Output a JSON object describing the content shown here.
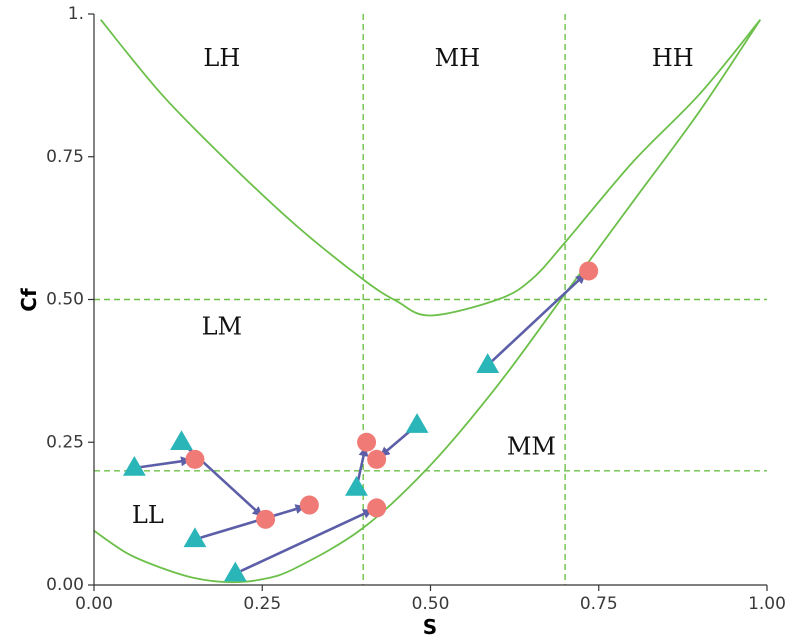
{
  "chart_data": {
    "type": "scatter",
    "xlabel": "S",
    "ylabel": "Cf",
    "xlim": [
      0,
      1
    ],
    "ylim": [
      0,
      1
    ],
    "x_ticks": [
      {
        "value": 0,
        "label": "0.00"
      },
      {
        "value": 0.25,
        "label": "0.25"
      },
      {
        "value": 0.5,
        "label": "0.50"
      },
      {
        "value": 0.75,
        "label": "0.75"
      },
      {
        "value": 1,
        "label": "1.00"
      }
    ],
    "y_ticks": [
      {
        "value": 0,
        "label": "0.00"
      },
      {
        "value": 0.25,
        "label": "0.25"
      },
      {
        "value": 0.5,
        "label": "0.50"
      },
      {
        "value": 0.75,
        "label": "0.75"
      },
      {
        "value": 1,
        "label": "1."
      }
    ],
    "grid": false,
    "threshold_lines": {
      "vertical": [
        0.4,
        0.7
      ],
      "horizontal": [
        0.5,
        0.2
      ],
      "color": "#6cc04a",
      "style": "dashed"
    },
    "curves": [
      {
        "name": "upper",
        "points": [
          [
            0.01,
            0.99
          ],
          [
            0.1,
            0.86
          ],
          [
            0.2,
            0.74
          ],
          [
            0.3,
            0.63
          ],
          [
            0.4,
            0.535
          ],
          [
            0.45,
            0.497
          ],
          [
            0.5,
            0.472
          ],
          [
            0.6,
            0.5
          ],
          [
            0.65,
            0.535
          ],
          [
            0.7,
            0.6
          ],
          [
            0.8,
            0.74
          ],
          [
            0.9,
            0.86
          ],
          [
            0.99,
            0.99
          ]
        ]
      },
      {
        "name": "lower",
        "points": [
          [
            0.0,
            0.095
          ],
          [
            0.05,
            0.055
          ],
          [
            0.1,
            0.03
          ],
          [
            0.15,
            0.012
          ],
          [
            0.2,
            0.005
          ],
          [
            0.25,
            0.01
          ],
          [
            0.3,
            0.03
          ],
          [
            0.4,
            0.1
          ],
          [
            0.5,
            0.21
          ],
          [
            0.6,
            0.35
          ],
          [
            0.7,
            0.51
          ],
          [
            0.8,
            0.67
          ],
          [
            0.9,
            0.83
          ],
          [
            0.99,
            0.99
          ]
        ]
      }
    ],
    "curve_color": "#6cc04a",
    "region_labels": [
      {
        "text": "LH",
        "x": 0.19,
        "y": 0.92
      },
      {
        "text": "MH",
        "x": 0.54,
        "y": 0.92
      },
      {
        "text": "HH",
        "x": 0.86,
        "y": 0.92
      },
      {
        "text": "LM",
        "x": 0.19,
        "y": 0.45
      },
      {
        "text": "MM",
        "x": 0.65,
        "y": 0.24
      },
      {
        "text": "LL",
        "x": 0.08,
        "y": 0.12
      }
    ],
    "start_points_color": "#2ab5b8",
    "end_points_color": "#ef7a76",
    "arrow_color": "#5c5fa8",
    "trajectories": [
      {
        "start": [
          0.06,
          0.205
        ],
        "end": [
          0.15,
          0.22
        ]
      },
      {
        "start": [
          0.13,
          0.25
        ],
        "end": [
          0.255,
          0.115
        ]
      },
      {
        "start": [
          0.15,
          0.08
        ],
        "end": [
          0.32,
          0.14
        ]
      },
      {
        "start": [
          0.21,
          0.02
        ],
        "end": [
          0.42,
          0.135
        ]
      },
      {
        "start": [
          0.39,
          0.17
        ],
        "end": [
          0.405,
          0.25
        ]
      },
      {
        "start": [
          0.48,
          0.28
        ],
        "end": [
          0.42,
          0.22
        ]
      },
      {
        "start": [
          0.585,
          0.385
        ],
        "end": [
          0.735,
          0.55
        ]
      }
    ]
  }
}
